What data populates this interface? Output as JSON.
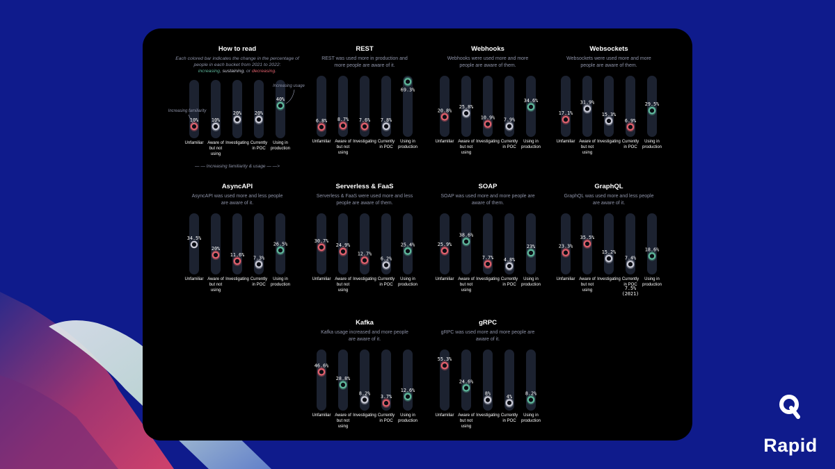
{
  "colors": {
    "background": "#0f1b8c",
    "panel": "#000000",
    "track": "#1c2230",
    "increasing": "#5fb89c",
    "sustaining": "#c9cad6",
    "decreasing": "#e0606c",
    "decor_left": [
      "#3a1f7a",
      "#b03a6b",
      "#d8eae0"
    ]
  },
  "brand": {
    "name": "Rapid",
    "icon": "rapid-q-logo-icon"
  },
  "legend_panel": {
    "title": "How to read",
    "text_lines": [
      "Each colored bar indicates the change in the percentage of",
      "people in each bucket from 2021 to 2022:"
    ],
    "states": {
      "increasing": "increasing",
      "sustaining": "sustaining",
      "decreasing": "decreasing"
    },
    "states_separator_1": ", ",
    "states_separator_2": ", or ",
    "states_end": ".",
    "annotation_familiarity": "Increasing familiarity",
    "annotation_usage": "Increasing usage",
    "footer": "— — Increasing familiarity & usage — —>",
    "categories": [
      "Unfamiliar",
      "Aware of but not using",
      "Investigating",
      "Currently in POC",
      "Using in production"
    ],
    "values": [
      10,
      10,
      20,
      20,
      40
    ],
    "labels": [
      "10%",
      "10%",
      "20%",
      "20%",
      "40%"
    ],
    "trends": [
      "decreasing",
      "sustaining",
      "sustaining",
      "sustaining",
      "increasing"
    ]
  },
  "chart_data": [
    {
      "type": "bar",
      "title": "REST",
      "subtitle": [
        "REST was used more in production and",
        "more people are aware of it."
      ],
      "categories": [
        "Unfamiliar",
        "Aware of but not using",
        "Investigating",
        "Currently in POC",
        "Using in production"
      ],
      "values": [
        6.8,
        8.7,
        7.6,
        7.8,
        69.3
      ],
      "labels": [
        "6.8%",
        "8.7%",
        "7.6%",
        "7.8%",
        "69.3%"
      ],
      "trends": [
        "decreasing",
        "decreasing",
        "decreasing",
        "sustaining",
        "increasing"
      ]
    },
    {
      "type": "bar",
      "title": "Webhooks",
      "subtitle": [
        "Webhooks were used more and more",
        "people are aware of them."
      ],
      "categories": [
        "Unfamiliar",
        "Aware of but not using",
        "Investigating",
        "Currently in POC",
        "Using in production"
      ],
      "values": [
        20.8,
        25.8,
        10.9,
        7.9,
        34.6
      ],
      "labels": [
        "20.8%",
        "25.8%",
        "10.9%",
        "7.9%",
        "34.6%"
      ],
      "trends": [
        "decreasing",
        "sustaining",
        "decreasing",
        "sustaining",
        "increasing"
      ]
    },
    {
      "type": "bar",
      "title": "Websockets",
      "subtitle": [
        "Websockets were used more and more",
        "people are aware of them."
      ],
      "categories": [
        "Unfamiliar",
        "Aware of but not using",
        "Investigating",
        "Currently in POC",
        "Using in production"
      ],
      "values": [
        17.1,
        31.9,
        15.3,
        6.9,
        29.5
      ],
      "labels": [
        "17.1%",
        "31.9%",
        "15.3%",
        "6.9%",
        "29.5%"
      ],
      "trends": [
        "decreasing",
        "sustaining",
        "sustaining",
        "decreasing",
        "increasing"
      ]
    },
    {
      "type": "bar",
      "title": "AsyncAPI",
      "subtitle": [
        "AsyncAPI was used more and less people",
        "are aware of it."
      ],
      "categories": [
        "Unfamiliar",
        "Aware of but not using",
        "Investigating",
        "Currently in POC",
        "Using in production"
      ],
      "values": [
        34.5,
        20,
        11.6,
        7.3,
        26.5
      ],
      "labels": [
        "34.5%",
        "20%",
        "11.6%",
        "7.3%",
        "26.5%"
      ],
      "trends": [
        "none",
        "decreasing",
        "decreasing",
        "sustaining",
        "increasing"
      ]
    },
    {
      "type": "bar",
      "title": "Serverless & FaaS",
      "subtitle": [
        "Serverless & FaaS were used more and less",
        "people are aware of them."
      ],
      "categories": [
        "Unfamiliar",
        "Aware of but not using",
        "Investigating",
        "Currently in POC",
        "Using in production"
      ],
      "values": [
        30.7,
        24.9,
        12.7,
        6.2,
        25.4
      ],
      "labels": [
        "30.7%",
        "24.9%",
        "12.7%",
        "6.2%",
        "25.4%"
      ],
      "trends": [
        "decreasing",
        "decreasing",
        "decreasing",
        "sustaining",
        "increasing"
      ]
    },
    {
      "type": "bar",
      "title": "SOAP",
      "subtitle": [
        "SOAP was used more and more people are",
        "aware of them."
      ],
      "categories": [
        "Unfamiliar",
        "Aware of but not using",
        "Investigating",
        "Currently in POC",
        "Using in production"
      ],
      "values": [
        25.9,
        38.6,
        7.7,
        4.8,
        23
      ],
      "labels": [
        "25.9%",
        "38.6%",
        "7.7%",
        "4.8%",
        "23%"
      ],
      "trends": [
        "decreasing",
        "increasing",
        "decreasing",
        "sustaining",
        "increasing"
      ]
    },
    {
      "type": "bar",
      "title": "GraphQL",
      "subtitle": [
        "GraphQL was used more and less people",
        "are aware of it."
      ],
      "categories": [
        "Unfamiliar",
        "Aware of but not using",
        "Investigating",
        "Currently in POC",
        "Using in production"
      ],
      "values": [
        23.3,
        35.5,
        15.2,
        7.4,
        18.6
      ],
      "labels": [
        "23.3%",
        "35.5%",
        "15.2%",
        "7.4%",
        "18.6%"
      ],
      "trends": [
        "decreasing",
        "decreasing",
        "sustaining",
        "sustaining",
        "increasing"
      ],
      "annotation": [
        "7.5%",
        "(2021)"
      ]
    },
    {
      "type": "bar",
      "title": "Kafka",
      "subtitle": [
        "Kafka usage increased and more people",
        "are aware of it."
      ],
      "categories": [
        "Unfamiliar",
        "Aware of but not using",
        "Investigating",
        "Currently in POC",
        "Using in production"
      ],
      "values": [
        46.6,
        28.8,
        8.2,
        3.7,
        12.6
      ],
      "labels": [
        "46.6%",
        "28.8%",
        "8.2%",
        "3.7%",
        "12.6%"
      ],
      "trends": [
        "decreasing",
        "increasing",
        "sustaining",
        "decreasing",
        "increasing"
      ]
    },
    {
      "type": "bar",
      "title": "gRPC",
      "subtitle": [
        "gRPC was used more and more people are",
        "aware of it."
      ],
      "categories": [
        "Unfamiliar",
        "Aware of but not using",
        "Investigating",
        "Currently in POC",
        "Using in production"
      ],
      "values": [
        55.3,
        24.6,
        8,
        4,
        8.2
      ],
      "labels": [
        "55.3%",
        "24.6%",
        "8%",
        "4%",
        "8.2%"
      ],
      "trends": [
        "decreasing",
        "increasing",
        "sustaining",
        "sustaining",
        "increasing"
      ]
    }
  ]
}
